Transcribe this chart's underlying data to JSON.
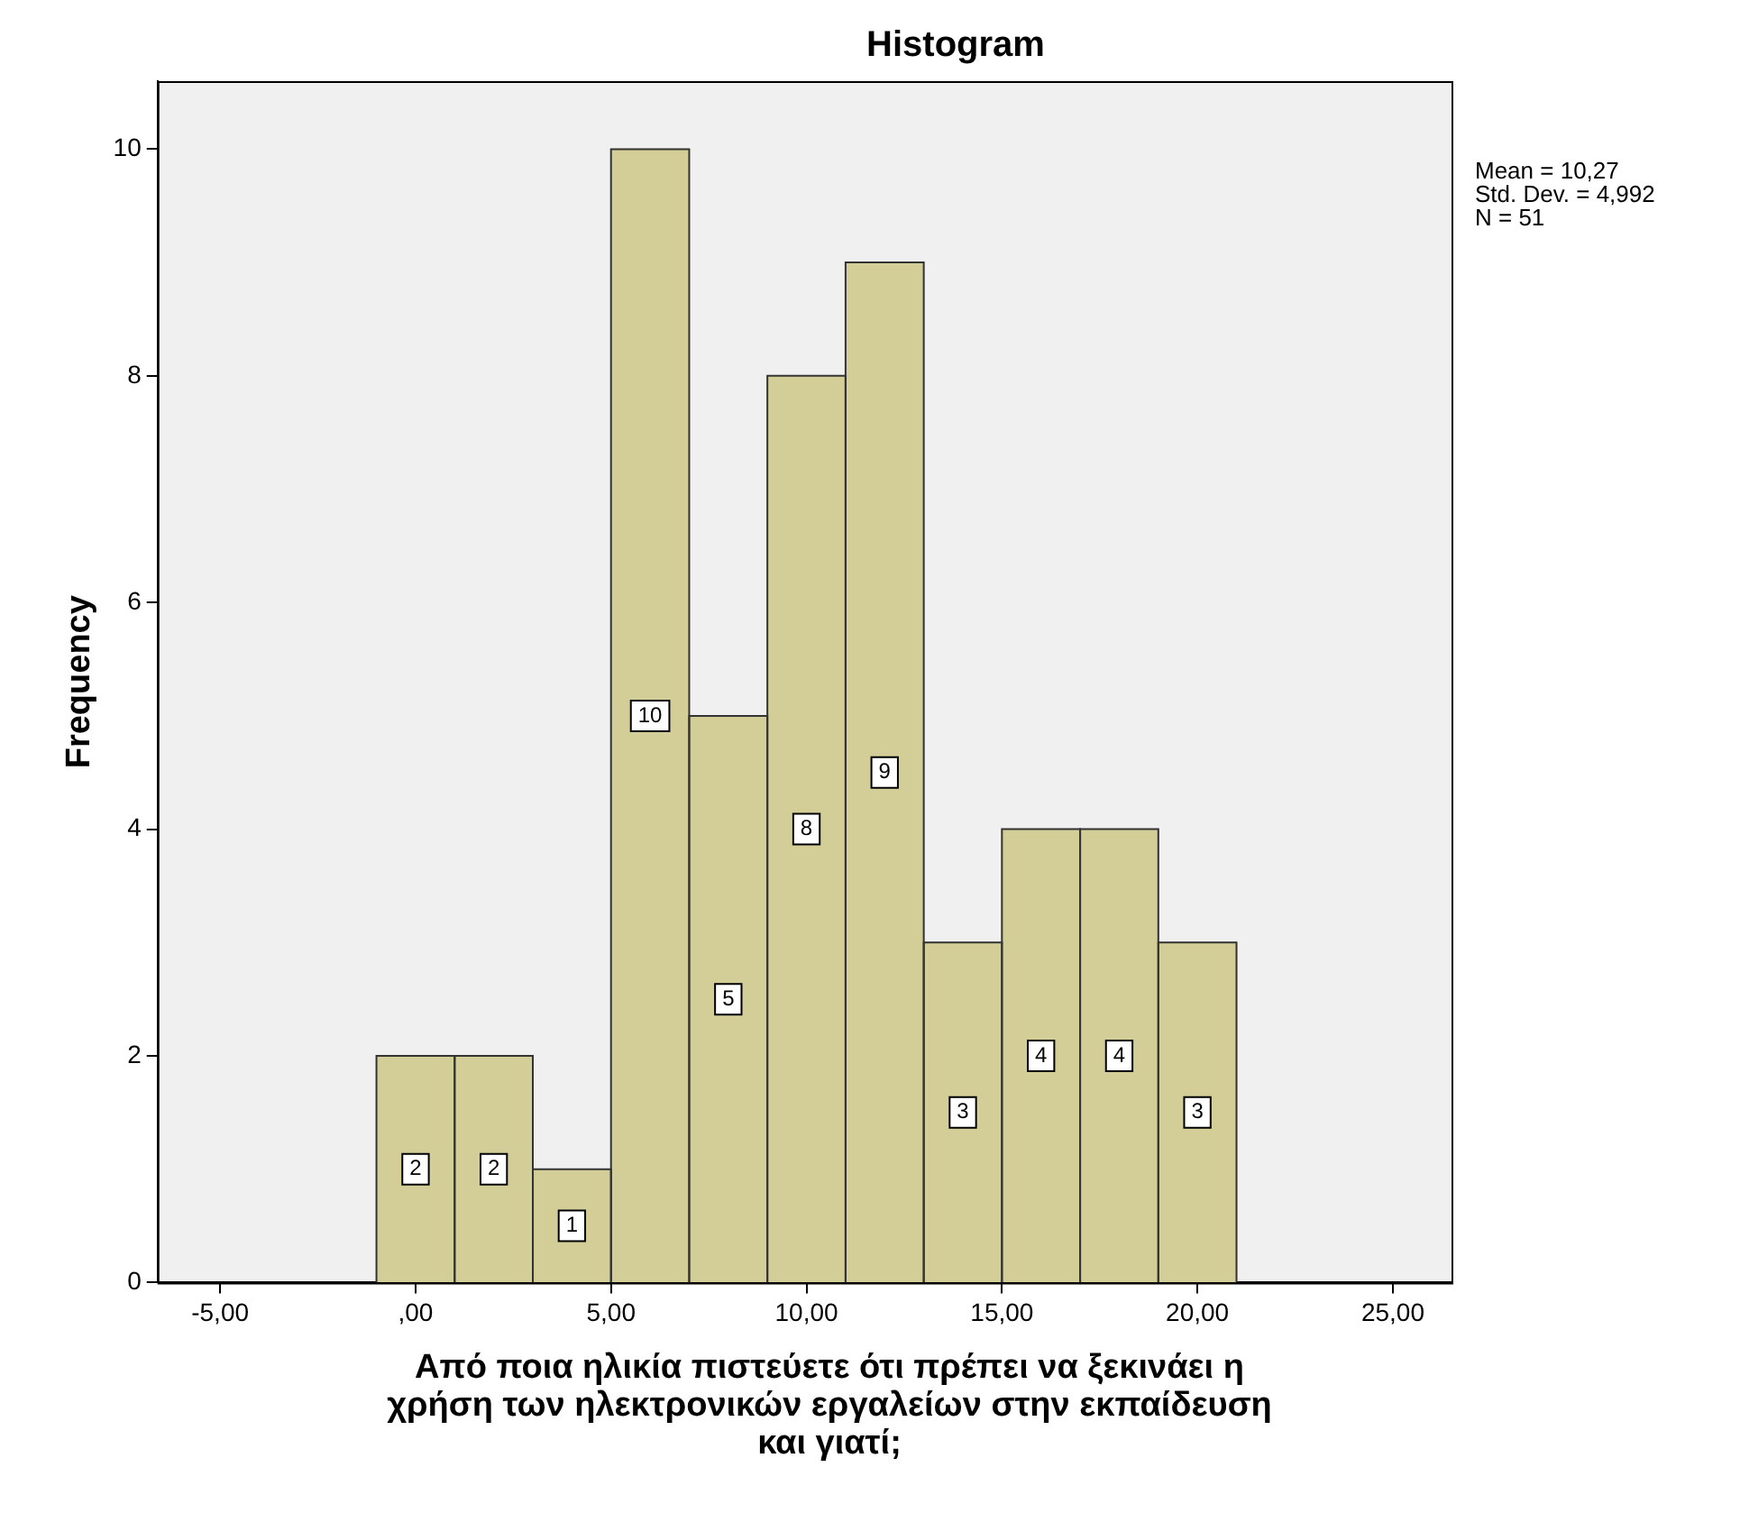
{
  "chart_data": {
    "type": "histogram",
    "title": "Histogram",
    "xlabel": "Από ποια ηλικία πιστεύετε ότι πρέπει να ξεκινάει η χρήση των ηλεκτρονικών εργαλείων στην εκπαίδευση και γιατί;",
    "ylabel": "Frequency",
    "bins": [
      -1,
      1,
      3,
      5,
      7,
      9,
      11,
      13,
      15,
      17,
      19,
      21
    ],
    "values": [
      2,
      2,
      1,
      10,
      5,
      8,
      9,
      3,
      4,
      4,
      3
    ],
    "color": "#d3ce97",
    "data_labels": true,
    "xlim": [
      -6.6,
      26.5
    ],
    "xticks": [
      {
        "value": -5,
        "label": "-5,00"
      },
      {
        "value": 0,
        "label": ",00"
      },
      {
        "value": 5,
        "label": "5,00"
      },
      {
        "value": 10,
        "label": "10,00"
      },
      {
        "value": 15,
        "label": "15,00"
      },
      {
        "value": 20,
        "label": "20,00"
      },
      {
        "value": 25,
        "label": "25,00"
      }
    ],
    "ylim": [
      0,
      10.6
    ],
    "yticks": [
      0,
      2,
      4,
      6,
      8,
      10
    ],
    "grid": false,
    "legend": false,
    "annotations": [
      "Mean = 10,27",
      "Std. Dev. = 4,992",
      "N = 51"
    ]
  }
}
